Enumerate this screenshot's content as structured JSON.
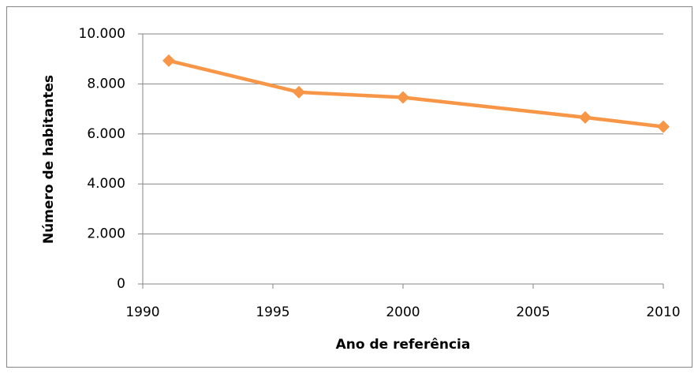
{
  "chart_data": {
    "type": "line",
    "x_label": "Ano de referência",
    "y_label": "Número de habitantes",
    "x": [
      1991,
      1996,
      2000,
      2007,
      2010
    ],
    "series": [
      {
        "color": "#f79646",
        "values": [
          8930,
          7670,
          7460,
          6660,
          6290
        ]
      }
    ],
    "xlim": [
      1990,
      2010
    ],
    "xticks": [
      1990,
      1995,
      2000,
      2005,
      2010
    ],
    "ylim": [
      0,
      10000
    ],
    "yticks": [
      0,
      {
        "value": 2000,
        "label": "2.000"
      },
      {
        "value": 4000,
        "label": "4.000"
      },
      {
        "value": 6000,
        "label": "6.000"
      },
      {
        "value": 8000,
        "label": "8.000"
      },
      {
        "value": 10000,
        "label": "10.000"
      }
    ],
    "grid": true
  }
}
